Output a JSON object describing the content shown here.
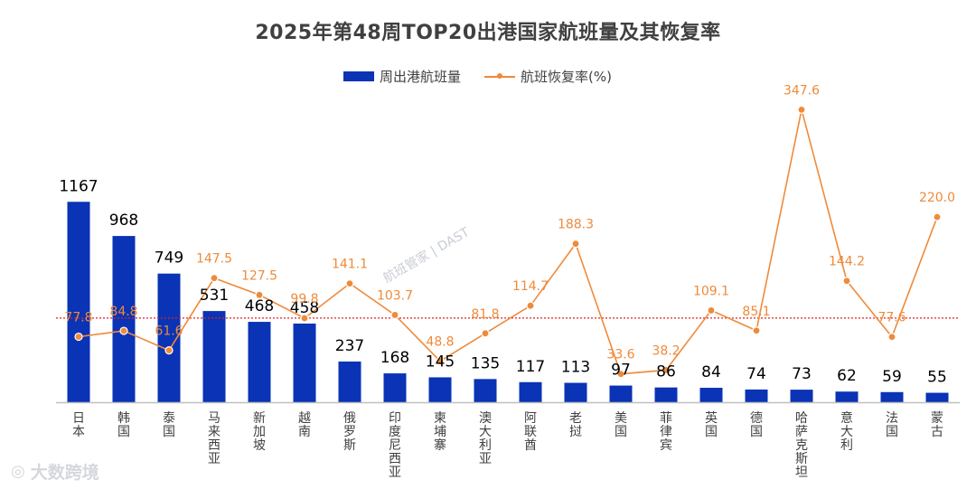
{
  "title": "2025年第48周TOP20出港国家航班量及其恢复率",
  "legend": {
    "bar_label": "周出港航班量",
    "line_label": "航班恢复率(%)"
  },
  "colors": {
    "bar": "#0a33b5",
    "line": "#ef8a3a",
    "reference": "#e0241b",
    "axis": "#bfbfbf",
    "bar_label": "#000000"
  },
  "watermark": {
    "center_text": "航班管家 | DAST",
    "logo_text": "大数跨境"
  },
  "chart_data": {
    "type": "bar",
    "title": "2025年第48周TOP20出港国家航班量及其恢复率",
    "categories": [
      "日本",
      "韩国",
      "泰国",
      "马来西亚",
      "新加坡",
      "越南",
      "俄罗斯",
      "印度尼西亚",
      "柬埔寨",
      "澳大利亚",
      "阿联酋",
      "老挝",
      "美国",
      "菲律宾",
      "英国",
      "德国",
      "哈萨克斯坦",
      "意大利",
      "法国",
      "蒙古"
    ],
    "series": [
      {
        "name": "周出港航班量",
        "type": "bar",
        "values": [
          1167,
          968,
          749,
          531,
          468,
          458,
          237,
          168,
          145,
          135,
          117,
          113,
          97,
          86,
          84,
          74,
          73,
          62,
          59,
          55
        ]
      },
      {
        "name": "航班恢复率(%)",
        "type": "line",
        "values": [
          77.8,
          84.8,
          61.6,
          147.5,
          127.5,
          99.8,
          141.1,
          103.7,
          48.8,
          81.8,
          114.7,
          188.3,
          33.6,
          38.2,
          109.1,
          85.1,
          347.6,
          144.2,
          77.6,
          220.0
        ]
      }
    ],
    "reference_line": {
      "value": 100,
      "series": "航班恢复率(%)",
      "style": "dotted"
    },
    "bar_axis_range": [
      0,
      1200
    ],
    "line_axis_range": [
      0,
      450
    ]
  }
}
